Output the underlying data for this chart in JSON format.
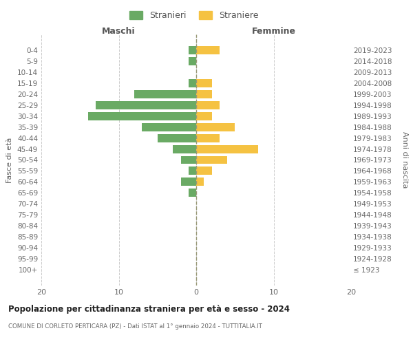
{
  "age_groups": [
    "100+",
    "95-99",
    "90-94",
    "85-89",
    "80-84",
    "75-79",
    "70-74",
    "65-69",
    "60-64",
    "55-59",
    "50-54",
    "45-49",
    "40-44",
    "35-39",
    "30-34",
    "25-29",
    "20-24",
    "15-19",
    "10-14",
    "5-9",
    "0-4"
  ],
  "birth_years": [
    "≤ 1923",
    "1924-1928",
    "1929-1933",
    "1934-1938",
    "1939-1943",
    "1944-1948",
    "1949-1953",
    "1954-1958",
    "1959-1963",
    "1964-1968",
    "1969-1973",
    "1974-1978",
    "1979-1983",
    "1984-1988",
    "1989-1993",
    "1994-1998",
    "1999-2003",
    "2004-2008",
    "2009-2013",
    "2014-2018",
    "2019-2023"
  ],
  "stranieri": [
    0,
    0,
    0,
    0,
    0,
    0,
    0,
    1,
    2,
    1,
    2,
    3,
    5,
    7,
    14,
    13,
    8,
    1,
    0,
    1,
    1
  ],
  "straniere": [
    0,
    0,
    0,
    0,
    0,
    0,
    0,
    0,
    1,
    2,
    4,
    8,
    3,
    5,
    2,
    3,
    2,
    2,
    0,
    0,
    3
  ],
  "color_stranieri": "#6aaa64",
  "color_straniere": "#f5c242",
  "title": "Popolazione per cittadinanza straniera per età e sesso - 2024",
  "subtitle": "COMUNE DI CORLETO PERTICARA (PZ) - Dati ISTAT al 1° gennaio 2024 - TUTTITALIA.IT",
  "xlabel_left": "Maschi",
  "xlabel_right": "Femmine",
  "ylabel_left": "Fasce di età",
  "ylabel_right": "Anni di nascita",
  "legend_stranieri": "Stranieri",
  "legend_straniere": "Straniere",
  "xlim": 20,
  "background_color": "#ffffff"
}
